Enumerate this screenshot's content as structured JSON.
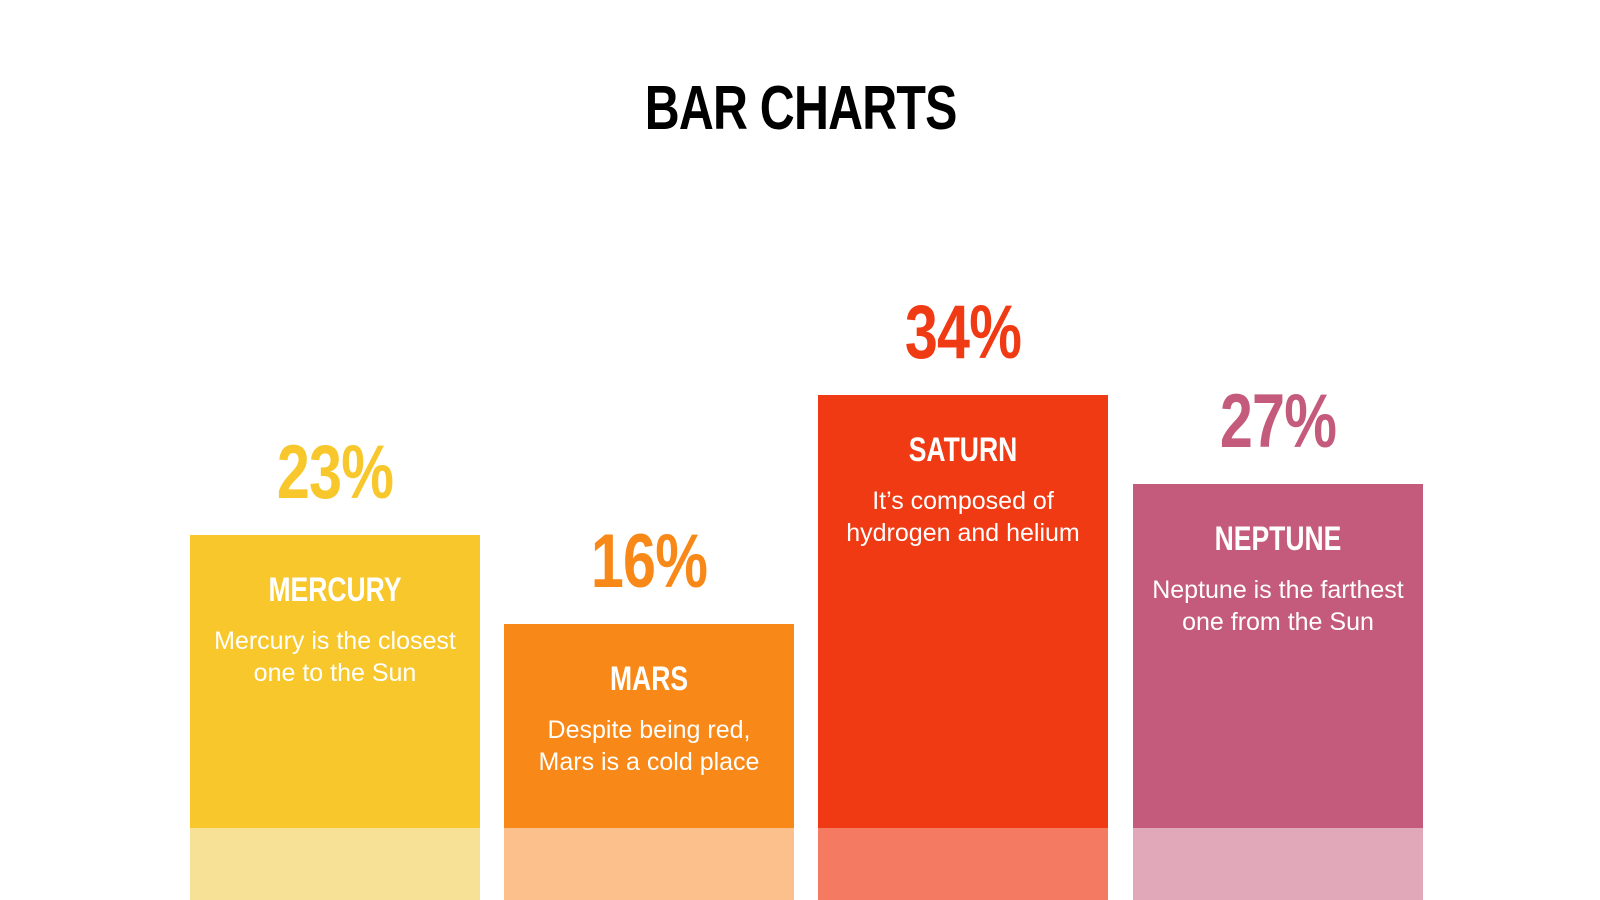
{
  "title": "BAR CHARTS",
  "chart_data": {
    "type": "bar",
    "categories": [
      "MERCURY",
      "MARS",
      "SATURN",
      "NEPTUNE"
    ],
    "values": [
      23,
      16,
      34,
      27
    ],
    "value_labels": [
      "23%",
      "16%",
      "34%",
      "27%"
    ],
    "descriptions": [
      "Mercury is the closest\none to the Sun",
      "Despite being red,\nMars is a cold place",
      "It’s composed of\nhydrogen and helium",
      "Neptune is the farthest\none from the Sun"
    ],
    "colors": [
      "#F7C72C",
      "#F88818",
      "#F03A14",
      "#C45B7C"
    ],
    "base_colors": [
      "#F7E196",
      "#FBC08B",
      "#F47A61",
      "#E0A8B9"
    ],
    "title": "BAR CHARTS",
    "xlabel": "",
    "ylabel": "",
    "ylim": [
      0,
      34
    ],
    "grid": false,
    "legend": "none"
  }
}
